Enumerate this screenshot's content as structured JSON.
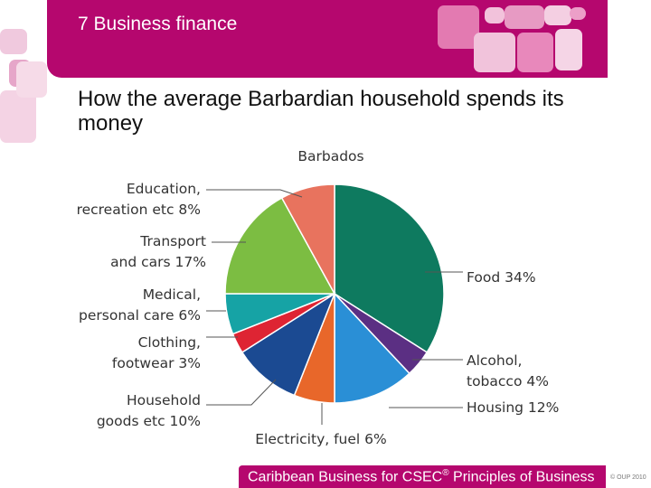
{
  "header": {
    "section_title": "7 Business finance"
  },
  "slide": {
    "title": "How the average Barbardian household spends its money"
  },
  "footer": {
    "text": "Caribbean Business for CSEC",
    "reg": "®",
    "text_after": " Principles of Business",
    "copyright": "© OUP 2010"
  },
  "chart_data": {
    "type": "pie",
    "title": "Barbados",
    "slices": [
      {
        "label_lines": [
          "Food 34%"
        ],
        "category": "Food",
        "value": 34,
        "color": "#0e7a5f"
      },
      {
        "label_lines": [
          "Alcohol,",
          "tobacco 4%"
        ],
        "category": "Alcohol, tobacco",
        "value": 4,
        "color": "#5b2f83"
      },
      {
        "label_lines": [
          "Housing 12%"
        ],
        "category": "Housing",
        "value": 12,
        "color": "#2a8fd6"
      },
      {
        "label_lines": [
          "Electricity, fuel 6%"
        ],
        "category": "Electricity, fuel",
        "value": 6,
        "color": "#e8672a"
      },
      {
        "label_lines": [
          "Household",
          "goods etc 10%"
        ],
        "category": "Household goods etc",
        "value": 10,
        "color": "#1b4a92"
      },
      {
        "label_lines": [
          "Clothing,",
          "footwear 3%"
        ],
        "category": "Clothing, footwear",
        "value": 3,
        "color": "#de2433"
      },
      {
        "label_lines": [
          "Medical,",
          "personal care 6%"
        ],
        "category": "Medical, personal care",
        "value": 6,
        "color": "#16a3a5"
      },
      {
        "label_lines": [
          "Transport",
          "and cars 17%"
        ],
        "category": "Transport and cars",
        "value": 17,
        "color": "#7cbd42"
      },
      {
        "label_lines": [
          "Education,",
          "recreation etc 8%"
        ],
        "category": "Education, recreation etc",
        "value": 8,
        "color": "#e8735e"
      }
    ]
  }
}
